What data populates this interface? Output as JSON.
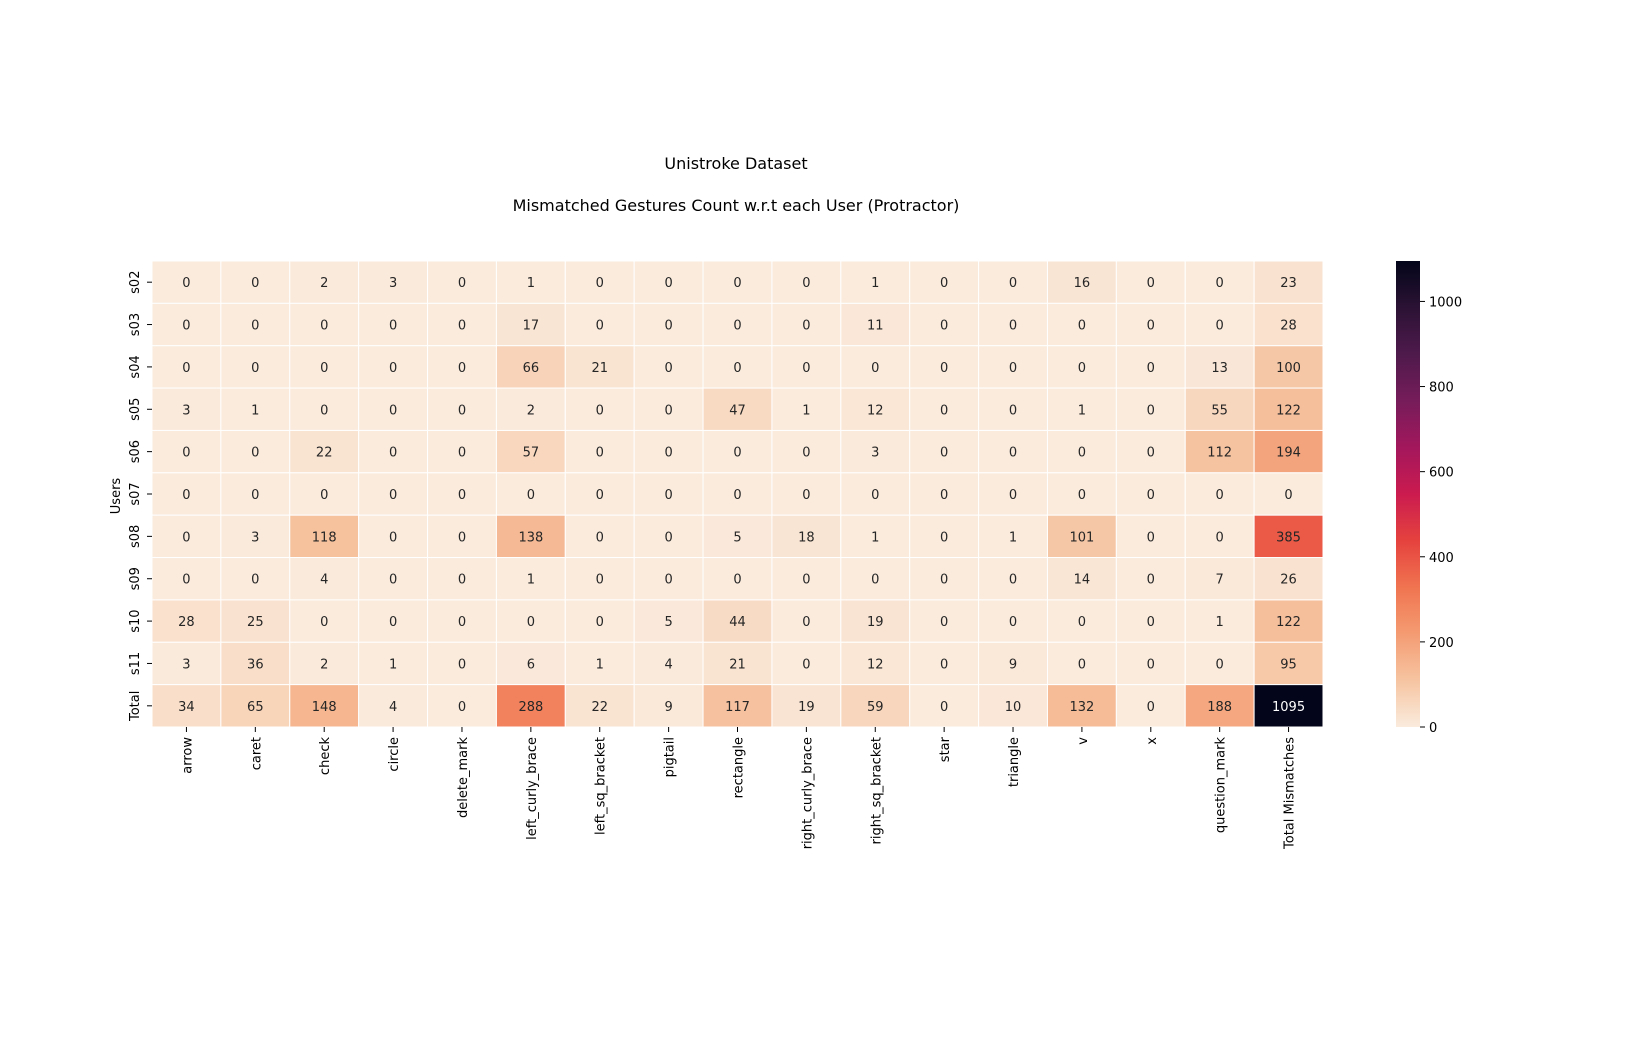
{
  "chart_data": {
    "type": "heatmap",
    "title": "Unistroke Dataset",
    "subtitle": "Mismatched Gestures Count w.r.t each User (Protractor)",
    "xlabel": "",
    "ylabel": "Users",
    "columns": [
      "arrow",
      "caret",
      "check",
      "circle",
      "delete_mark",
      "left_curly_brace",
      "left_sq_bracket",
      "pigtail",
      "rectangle",
      "right_curly_brace",
      "right_sq_bracket",
      "star",
      "triangle",
      "v",
      "x",
      "question_mark",
      "Total Mismatches"
    ],
    "rows": [
      "s02",
      "s03",
      "s04",
      "s05",
      "s06",
      "s07",
      "s08",
      "s09",
      "s10",
      "s11",
      "Total"
    ],
    "values": [
      [
        0,
        0,
        2,
        3,
        0,
        1,
        0,
        0,
        0,
        0,
        1,
        0,
        0,
        16,
        0,
        0,
        23
      ],
      [
        0,
        0,
        0,
        0,
        0,
        17,
        0,
        0,
        0,
        0,
        11,
        0,
        0,
        0,
        0,
        0,
        28
      ],
      [
        0,
        0,
        0,
        0,
        0,
        66,
        21,
        0,
        0,
        0,
        0,
        0,
        0,
        0,
        0,
        13,
        100
      ],
      [
        3,
        1,
        0,
        0,
        0,
        2,
        0,
        0,
        47,
        1,
        12,
        0,
        0,
        1,
        0,
        55,
        122
      ],
      [
        0,
        0,
        22,
        0,
        0,
        57,
        0,
        0,
        0,
        0,
        3,
        0,
        0,
        0,
        0,
        112,
        194
      ],
      [
        0,
        0,
        0,
        0,
        0,
        0,
        0,
        0,
        0,
        0,
        0,
        0,
        0,
        0,
        0,
        0,
        0
      ],
      [
        0,
        3,
        118,
        0,
        0,
        138,
        0,
        0,
        5,
        18,
        1,
        0,
        1,
        101,
        0,
        0,
        385
      ],
      [
        0,
        0,
        4,
        0,
        0,
        1,
        0,
        0,
        0,
        0,
        0,
        0,
        0,
        14,
        0,
        7,
        26
      ],
      [
        28,
        25,
        0,
        0,
        0,
        0,
        0,
        5,
        44,
        0,
        19,
        0,
        0,
        0,
        0,
        1,
        122
      ],
      [
        3,
        36,
        2,
        1,
        0,
        6,
        1,
        4,
        21,
        0,
        12,
        0,
        9,
        0,
        0,
        0,
        95
      ],
      [
        34,
        65,
        148,
        4,
        0,
        288,
        22,
        9,
        117,
        19,
        59,
        0,
        10,
        132,
        0,
        188,
        1095
      ]
    ],
    "colorbar": {
      "min": 0,
      "max": 1095,
      "ticks": [
        "0",
        "200",
        "400",
        "600",
        "800",
        "1000"
      ],
      "colormap": "rocket_r"
    },
    "grid": false,
    "legend": "colorbar-right"
  }
}
